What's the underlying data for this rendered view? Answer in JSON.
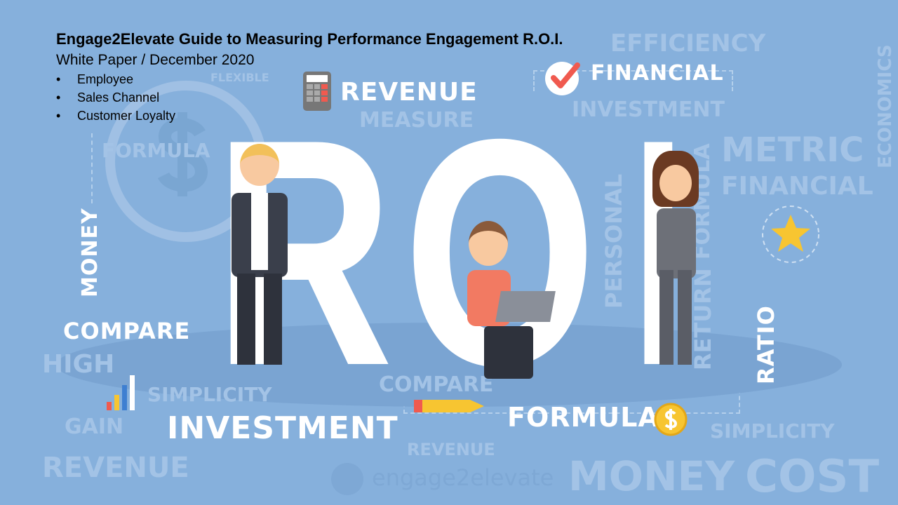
{
  "header": {
    "title": "Engage2Elevate Guide to Measuring Performance Engagement R.O.I.",
    "subtitle": "White Paper / December 2020",
    "bullets": [
      "Employee",
      "Sales Channel",
      "Customer Loyalty"
    ]
  },
  "hero": {
    "letters": [
      "R",
      "O",
      "I"
    ]
  },
  "words": {
    "revenue": "REVENUE",
    "financial": "FINANCIAL",
    "money": "MONEY",
    "compare": "COMPARE",
    "investment": "INVESTMENT",
    "formula": "FORMULA",
    "ratio": "RATIO"
  },
  "faint_words": {
    "flexible": "FLEXIBLE",
    "measure": "MEASURE",
    "investment": "INVESTMENT",
    "personal": "PERSONAL",
    "economics": "ECONOMICS",
    "formula_v": "FORMULA",
    "return": "RETURN",
    "revenue_mid": "REVENUE",
    "formula_mid": "FORMULA",
    "money_mid": "MONEY",
    "metric": "METRIC",
    "simplicity_mid": "SIMPLICITY",
    "financial_mid": "FINANCIAL",
    "high": "HIGH",
    "gain": "GAIN",
    "revenue_bottom": "REVENUE",
    "simplicity_bottom": "SIMPLICITY",
    "cost": "COST",
    "compare_mid": "COMPARE",
    "efficiency": "EFFICIENCY"
  },
  "watermark": "engage2elevate",
  "colors": {
    "background": "#86b0dc",
    "accent": "#f05a4f",
    "star": "#f7c531"
  }
}
